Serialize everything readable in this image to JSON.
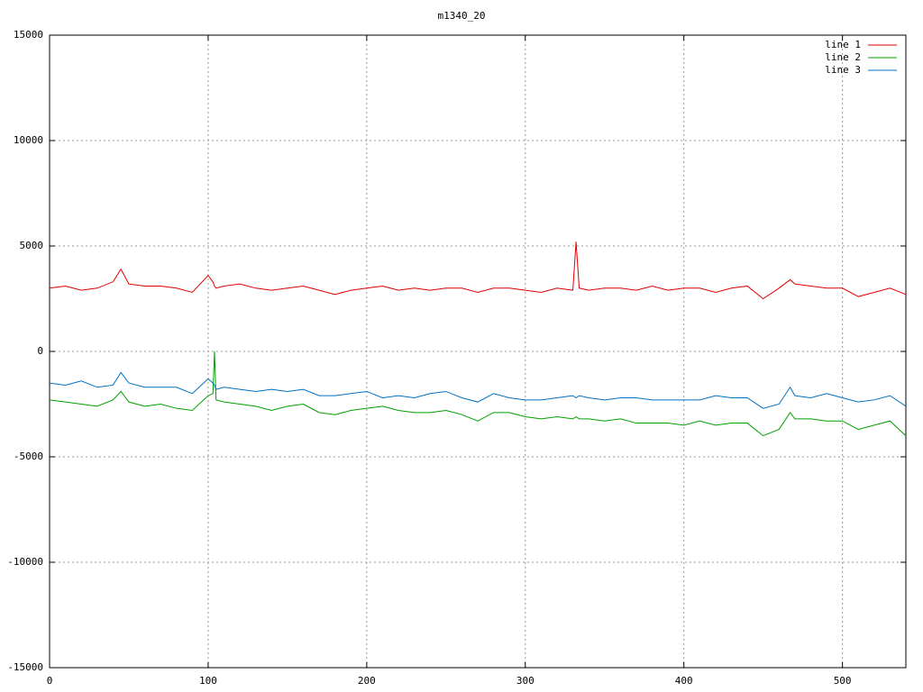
{
  "chart_data": {
    "type": "line",
    "title": "m1340_20",
    "x": [
      0,
      10,
      20,
      30,
      40,
      45,
      50,
      60,
      70,
      80,
      90,
      100,
      103,
      104,
      105,
      110,
      120,
      130,
      140,
      150,
      160,
      170,
      180,
      190,
      200,
      210,
      220,
      230,
      240,
      250,
      260,
      270,
      280,
      290,
      300,
      310,
      320,
      330,
      332,
      334,
      340,
      350,
      360,
      370,
      380,
      390,
      400,
      410,
      420,
      430,
      440,
      450,
      460,
      467,
      470,
      480,
      490,
      500,
      510,
      520,
      530,
      540
    ],
    "series": [
      {
        "name": "line 1",
        "color": "#e00000",
        "values": [
          3000,
          3100,
          2900,
          3000,
          3300,
          3900,
          3200,
          3100,
          3100,
          3000,
          2800,
          3600,
          3300,
          3100,
          3000,
          3100,
          3200,
          3000,
          2900,
          3000,
          3100,
          2900,
          2700,
          2900,
          3000,
          3100,
          2900,
          3000,
          2900,
          3000,
          3000,
          2800,
          3000,
          3000,
          2900,
          2800,
          3000,
          2900,
          5200,
          3000,
          2900,
          3000,
          3000,
          2900,
          3100,
          2900,
          3000,
          3000,
          2800,
          3000,
          3100,
          2500,
          3000,
          3400,
          3200,
          3100,
          3000,
          3000,
          2600,
          2800,
          3000,
          2700
        ]
      },
      {
        "name": "line 2",
        "color": "#00a000",
        "values": [
          -2300,
          -2400,
          -2500,
          -2600,
          -2300,
          -1900,
          -2400,
          -2600,
          -2500,
          -2700,
          -2800,
          -2100,
          -2000,
          0,
          -2300,
          -2400,
          -2500,
          -2600,
          -2800,
          -2600,
          -2500,
          -2900,
          -3000,
          -2800,
          -2700,
          -2600,
          -2800,
          -2900,
          -2900,
          -2800,
          -3000,
          -3300,
          -2900,
          -2900,
          -3100,
          -3200,
          -3100,
          -3200,
          -3100,
          -3200,
          -3200,
          -3300,
          -3200,
          -3400,
          -3400,
          -3400,
          -3500,
          -3300,
          -3500,
          -3400,
          -3400,
          -4000,
          -3700,
          -2900,
          -3200,
          -3200,
          -3300,
          -3300,
          -3700,
          -3500,
          -3300,
          -4000
        ]
      },
      {
        "name": "line 3",
        "color": "#0070c0",
        "values": [
          -1500,
          -1600,
          -1400,
          -1700,
          -1600,
          -1000,
          -1500,
          -1700,
          -1700,
          -1700,
          -2000,
          -1300,
          -1500,
          -1600,
          -1800,
          -1700,
          -1800,
          -1900,
          -1800,
          -1900,
          -1800,
          -2100,
          -2100,
          -2000,
          -1900,
          -2200,
          -2100,
          -2200,
          -2000,
          -1900,
          -2200,
          -2400,
          -2000,
          -2200,
          -2300,
          -2300,
          -2200,
          -2100,
          -2200,
          -2100,
          -2200,
          -2300,
          -2200,
          -2200,
          -2300,
          -2300,
          -2300,
          -2300,
          -2100,
          -2200,
          -2200,
          -2700,
          -2500,
          -1700,
          -2100,
          -2200,
          -2000,
          -2200,
          -2400,
          -2300,
          -2100,
          -2600
        ]
      }
    ],
    "xlim": [
      0,
      540
    ],
    "xticks": [
      0,
      100,
      200,
      300,
      400,
      500
    ],
    "ylim": [
      -15000,
      15000
    ],
    "yticks": [
      -15000,
      -10000,
      -5000,
      0,
      5000,
      10000,
      15000
    ],
    "grid": true,
    "legend": "top-right"
  }
}
